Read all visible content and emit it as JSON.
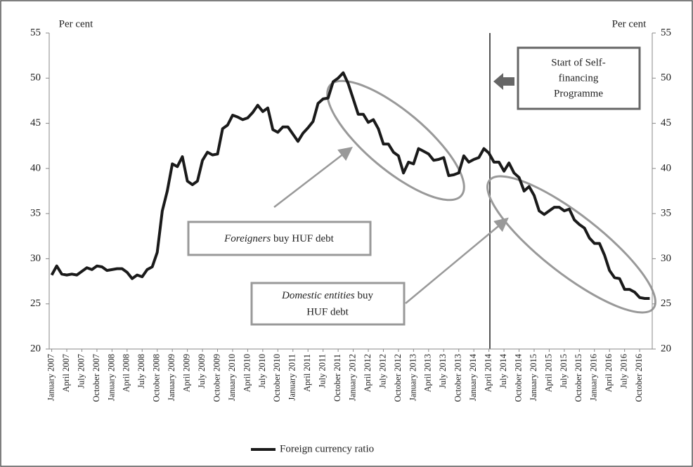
{
  "chart_data": {
    "type": "line",
    "y_label": "Per cent",
    "y2_label": "Per cent",
    "categories": [
      "January 2007",
      null,
      null,
      "April 2007",
      null,
      null,
      "July 2007",
      null,
      null,
      "October 2007",
      null,
      null,
      "January 2008",
      null,
      null,
      "April 2008",
      null,
      null,
      "July 2008",
      null,
      null,
      "October 2008",
      null,
      null,
      "January 2009",
      null,
      null,
      "April 2009",
      null,
      null,
      "July 2009",
      null,
      null,
      "October 2009",
      null,
      null,
      "January 2010",
      null,
      null,
      "April 2010",
      null,
      null,
      "July 2010",
      null,
      null,
      "October 2010",
      null,
      null,
      "January 2011",
      null,
      null,
      "April 2011",
      null,
      null,
      "July 2011",
      null,
      null,
      "October 2011",
      null,
      null,
      "January 2012",
      null,
      null,
      "April 2012",
      null,
      null,
      "July 2012",
      null,
      null,
      "October 2012",
      null,
      null,
      "January 2013",
      null,
      null,
      "April 2013",
      null,
      null,
      "July 2013",
      null,
      null,
      "October 2013",
      null,
      null,
      "January 2014",
      null,
      null,
      "April 2014",
      null,
      null,
      "July 2014",
      null,
      null,
      "October 2014",
      null,
      null,
      "January 2015",
      null,
      null,
      "April 2015",
      null,
      null,
      "July 2015",
      null,
      null,
      "October 2015",
      null,
      null,
      "January 2016",
      null,
      null,
      "April 2016",
      null,
      null,
      "July 2016",
      null,
      null,
      "October 2016",
      null,
      null
    ],
    "series": [
      {
        "name": "Foreign currency ratio",
        "color": "#1a1a1a",
        "values": [
          28.2,
          29.2,
          28.3,
          28.2,
          28.3,
          28.2,
          28.6,
          29.0,
          28.8,
          29.2,
          29.1,
          28.7,
          28.8,
          28.9,
          28.9,
          28.5,
          27.8,
          28.2,
          28.0,
          28.8,
          29.1,
          30.7,
          35.3,
          37.5,
          40.5,
          40.2,
          41.3,
          38.6,
          38.2,
          38.6,
          40.9,
          41.8,
          41.5,
          41.6,
          44.4,
          44.8,
          45.9,
          45.7,
          45.4,
          45.6,
          46.2,
          47.0,
          46.3,
          46.7,
          44.3,
          44.0,
          44.6,
          44.6,
          43.8,
          43.0,
          43.9,
          44.5,
          45.2,
          47.2,
          47.7,
          47.8,
          49.6,
          50.0,
          50.6,
          49.4,
          47.7,
          46.0,
          46.0,
          45.1,
          45.4,
          44.4,
          42.7,
          42.7,
          41.8,
          41.4,
          39.5,
          40.7,
          40.5,
          42.2,
          41.9,
          41.6,
          40.9,
          41.0,
          41.2,
          39.2,
          39.3,
          39.5,
          41.4,
          40.7,
          41.0,
          41.2,
          42.2,
          41.7,
          40.7,
          40.7,
          39.7,
          40.6,
          39.5,
          39.0,
          37.5,
          38.0,
          37.0,
          35.3,
          34.9,
          35.3,
          35.7,
          35.7,
          35.3,
          35.5,
          34.3,
          33.8,
          33.4,
          32.3,
          31.7,
          31.7,
          30.4,
          28.7,
          27.9,
          27.8,
          26.6,
          26.6,
          26.3,
          25.7,
          25.6,
          25.6
        ]
      }
    ],
    "ylim": [
      20,
      55
    ],
    "yticks": [
      20,
      25,
      30,
      35,
      40,
      45,
      50,
      55
    ],
    "y2lim": [
      20,
      55
    ],
    "y2ticks": [
      20,
      25,
      30,
      35,
      40,
      45,
      50,
      55
    ],
    "grid": false,
    "legend": "bottom",
    "annotations": {
      "programme": [
        "Start of Self-",
        "financing",
        "Programme"
      ],
      "foreigners": {
        "italic": "Foreigners",
        "text": "buy HUF debt"
      },
      "domestic": {
        "italic": "Domestic entities",
        "text": "buy",
        "line2": "HUF debt"
      }
    }
  }
}
